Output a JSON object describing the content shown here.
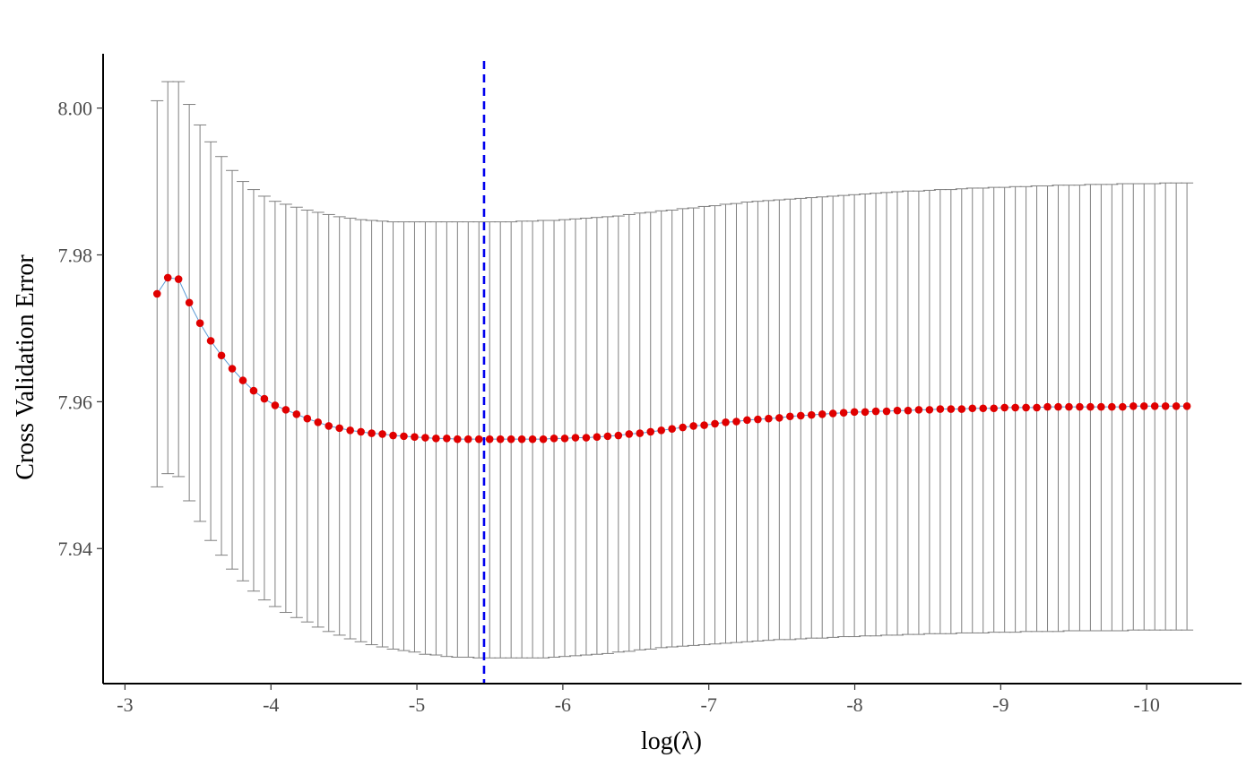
{
  "chart_data": {
    "type": "scatter",
    "title": "",
    "xlabel": "log(λ)",
    "ylabel": "Cross Validation Error",
    "x_ticks": [
      -3,
      -4,
      -5,
      -6,
      -7,
      -8,
      -9,
      -10
    ],
    "x_tick_labels": [
      "-3",
      "-4",
      "-5",
      "-6",
      "-7",
      "-8",
      "-9",
      "-10"
    ],
    "y_ticks": [
      7.94,
      7.96,
      7.98,
      8.0
    ],
    "y_tick_labels": [
      "7.94",
      "7.96",
      "7.98",
      "8.00"
    ],
    "xlim": [
      -2.85,
      -10.65
    ],
    "ylim": [
      7.9216,
      8.0074
    ],
    "x_reversed": true,
    "grid": false,
    "selected_log_lambda": -5.46,
    "log_lambda_start": -3.22,
    "log_lambda_step": -0.0735,
    "point_color": "#e00000",
    "line_color": "#5b9bd5",
    "errorbar_color": "#7f7f7f",
    "vline_color": "#0000ee",
    "series": [
      {
        "mean": [
          7.9747,
          7.9769,
          7.9767,
          7.9735,
          7.9707,
          7.9683,
          7.9663,
          7.9645,
          7.9629,
          7.9615,
          7.9604,
          7.9595,
          7.9589,
          7.9583,
          7.9577,
          7.9572,
          7.9567,
          7.9564,
          7.9561,
          7.9559,
          7.9557,
          7.9556,
          7.9554,
          7.9553,
          7.9552,
          7.9551,
          7.955,
          7.955,
          7.9549,
          7.9549,
          7.9549,
          7.9549,
          7.9549,
          7.9549,
          7.9549,
          7.9549,
          7.9549,
          7.955,
          7.955,
          7.9551,
          7.9551,
          7.9552,
          7.9553,
          7.9554,
          7.9556,
          7.9557,
          7.9559,
          7.9561,
          7.9563,
          7.9565,
          7.9567,
          7.9568,
          7.957,
          7.9572,
          7.9573,
          7.9575,
          7.9576,
          7.9577,
          7.9578,
          7.958,
          7.9581,
          7.9582,
          7.9583,
          7.9584,
          7.9585,
          7.9586,
          7.9586,
          7.9587,
          7.9587,
          7.9588,
          7.9588,
          7.9589,
          7.9589,
          7.959,
          7.959,
          7.959,
          7.9591,
          7.9591,
          7.9591,
          7.9592,
          7.9592,
          7.9592,
          7.9592,
          7.9593,
          7.9593,
          7.9593,
          7.9593,
          7.9593,
          7.9593,
          7.9593,
          7.9593,
          7.9594,
          7.9594,
          7.9594,
          7.9594,
          7.9594,
          7.9594
        ],
        "upper": [
          8.001,
          8.0036,
          8.0036,
          8.0005,
          7.9977,
          7.9954,
          7.9934,
          7.9915,
          7.99,
          7.9889,
          7.988,
          7.9873,
          7.9869,
          7.9865,
          7.9861,
          7.9858,
          7.9855,
          7.9852,
          7.985,
          7.9848,
          7.9847,
          7.9846,
          7.9845,
          7.9845,
          7.9845,
          7.9845,
          7.9845,
          7.9845,
          7.9845,
          7.9845,
          7.9845,
          7.9845,
          7.9845,
          7.9845,
          7.9846,
          7.9846,
          7.9847,
          7.9847,
          7.9848,
          7.9849,
          7.985,
          7.9851,
          7.9852,
          7.9853,
          7.9855,
          7.9857,
          7.9858,
          7.986,
          7.9861,
          7.9863,
          7.9864,
          7.9866,
          7.9867,
          7.9869,
          7.987,
          7.9872,
          7.9873,
          7.9874,
          7.9875,
          7.9876,
          7.9877,
          7.9878,
          7.9879,
          7.988,
          7.9881,
          7.9882,
          7.9883,
          7.9884,
          7.9885,
          7.9886,
          7.9887,
          7.9887,
          7.9888,
          7.9889,
          7.9889,
          7.989,
          7.9891,
          7.9891,
          7.9892,
          7.9892,
          7.9893,
          7.9893,
          7.9894,
          7.9894,
          7.9895,
          7.9895,
          7.9895,
          7.9896,
          7.9896,
          7.9896,
          7.9897,
          7.9897,
          7.9897,
          7.9897,
          7.9898,
          7.9898,
          7.9898
        ],
        "lower": [
          7.9484,
          7.9502,
          7.9498,
          7.9465,
          7.9437,
          7.9411,
          7.9391,
          7.9372,
          7.9356,
          7.9342,
          7.933,
          7.9321,
          7.9313,
          7.9306,
          7.93,
          7.9293,
          7.9287,
          7.9282,
          7.9277,
          7.9273,
          7.9269,
          7.9266,
          7.9263,
          7.9261,
          7.9259,
          7.9256,
          7.9255,
          7.9253,
          7.9252,
          7.9252,
          7.9251,
          7.9251,
          7.9251,
          7.9251,
          7.9251,
          7.9251,
          7.9251,
          7.9252,
          7.9253,
          7.9254,
          7.9255,
          7.9256,
          7.9257,
          7.9259,
          7.926,
          7.9262,
          7.9263,
          7.9265,
          7.9266,
          7.9267,
          7.9268,
          7.9269,
          7.927,
          7.9271,
          7.9272,
          7.9273,
          7.9274,
          7.9275,
          7.9276,
          7.9276,
          7.9277,
          7.9278,
          7.9278,
          7.9279,
          7.928,
          7.928,
          7.9281,
          7.9281,
          7.9282,
          7.9282,
          7.9283,
          7.9283,
          7.9284,
          7.9284,
          7.9284,
          7.9285,
          7.9285,
          7.9285,
          7.9286,
          7.9286,
          7.9286,
          7.9287,
          7.9287,
          7.9287,
          7.9287,
          7.9288,
          7.9288,
          7.9288,
          7.9288,
          7.9288,
          7.9288,
          7.9289,
          7.9289,
          7.9289,
          7.9289,
          7.9289,
          7.9289
        ]
      }
    ]
  }
}
